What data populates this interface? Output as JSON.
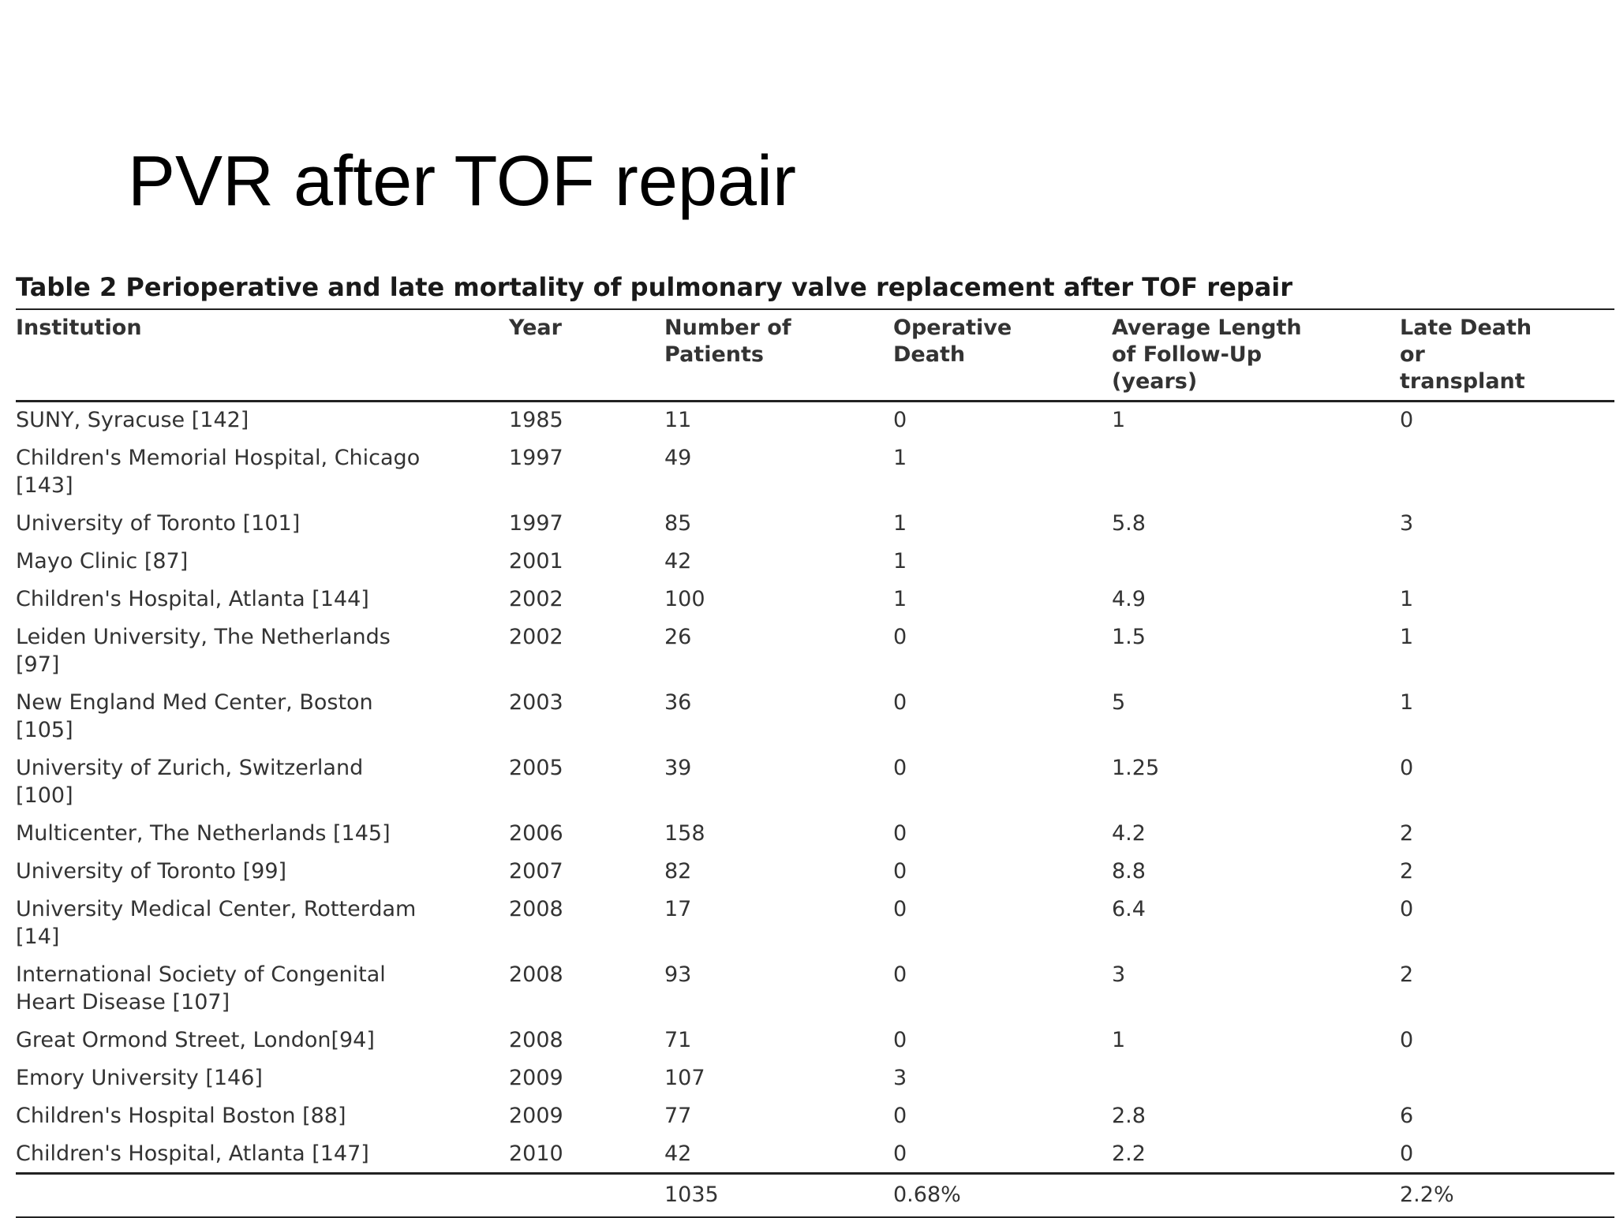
{
  "slide": {
    "title": "PVR after TOF repair"
  },
  "table": {
    "caption": "Table 2 Perioperative and late mortality of pulmonary valve replacement after TOF repair",
    "columns": [
      "Institution",
      "Year",
      "Number of\nPatients",
      "Operative\nDeath",
      "Average Length\nof Follow-Up\n(years)",
      "Late Death\nor\ntransplant"
    ],
    "rows": [
      [
        "SUNY, Syracuse [142]",
        "1985",
        "11",
        "0",
        "1",
        "0"
      ],
      [
        "Children's Memorial Hospital, Chicago [143]",
        "1997",
        "49",
        "1",
        "",
        ""
      ],
      [
        "University of Toronto [101]",
        "1997",
        "85",
        "1",
        "5.8",
        "3"
      ],
      [
        "Mayo Clinic [87]",
        "2001",
        "42",
        "1",
        "",
        ""
      ],
      [
        "Children's Hospital, Atlanta [144]",
        "2002",
        "100",
        "1",
        "4.9",
        "1"
      ],
      [
        "Leiden University, The Netherlands [97]",
        "2002",
        "26",
        "0",
        "1.5",
        "1"
      ],
      [
        "New England Med Center, Boston [105]",
        "2003",
        "36",
        "0",
        "5",
        "1"
      ],
      [
        "University of Zurich, Switzerland [100]",
        "2005",
        "39",
        "0",
        "1.25",
        "0"
      ],
      [
        "Multicenter, The Netherlands [145]",
        "2006",
        "158",
        "0",
        "4.2",
        "2"
      ],
      [
        "University of Toronto [99]",
        "2007",
        "82",
        "0",
        "8.8",
        "2"
      ],
      [
        "University Medical Center, Rotterdam [14]",
        "2008",
        "17",
        "0",
        "6.4",
        "0"
      ],
      [
        "International Society of Congenital Heart Disease [107]",
        "2008",
        "93",
        "0",
        "3",
        "2"
      ],
      [
        "Great Ormond Street, London[94]",
        "2008",
        "71",
        "0",
        "1",
        "0"
      ],
      [
        "Emory University [146]",
        "2009",
        "107",
        "3",
        "",
        ""
      ],
      [
        "Children's Hospital Boston [88]",
        "2009",
        "77",
        "0",
        "2.8",
        "6"
      ],
      [
        "Children's Hospital, Atlanta [147]",
        "2010",
        "42",
        "0",
        "2.2",
        "0"
      ]
    ],
    "totals": [
      "",
      "",
      "1035",
      "0.68%",
      "",
      "2.2%"
    ]
  }
}
